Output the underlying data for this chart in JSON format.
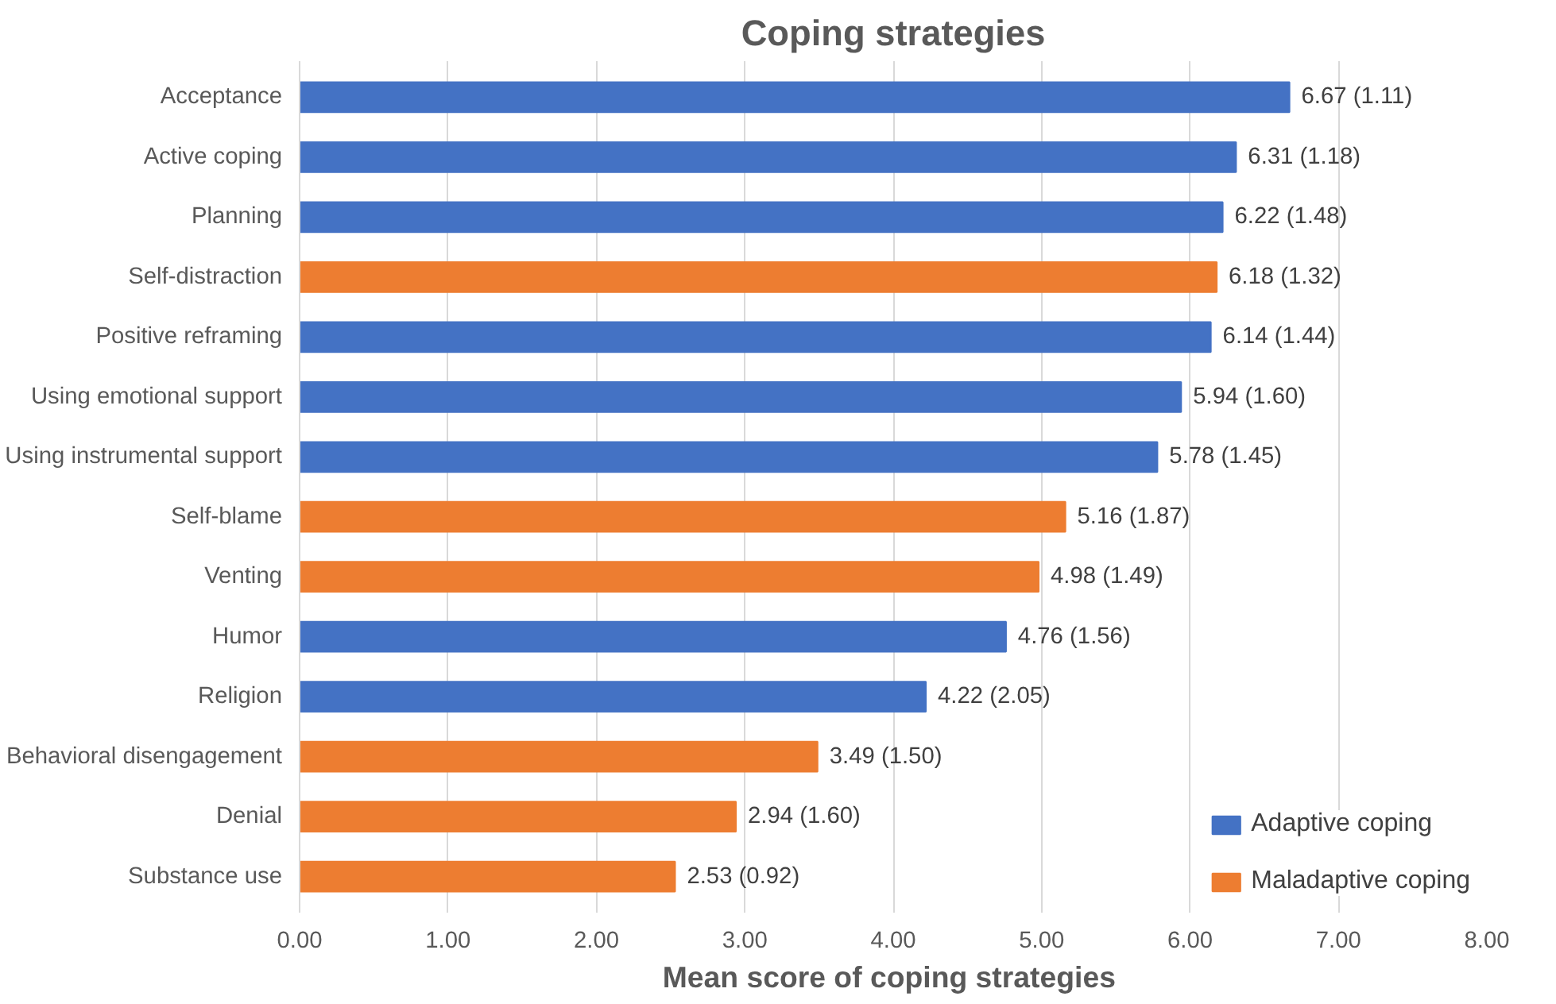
{
  "chart_data": {
    "type": "bar",
    "orientation": "horizontal",
    "title": "Coping strategies",
    "xlabel": "Mean score of  coping strategies",
    "categories": [
      "Acceptance",
      "Active coping",
      "Planning",
      "Self-distraction",
      "Positive reframing",
      "Using emotional support",
      "Using instrumental support",
      "Self-blame",
      "Venting",
      "Humor",
      "Religion",
      "Behavioral disengagement",
      "Denial",
      "Substance use"
    ],
    "series": [
      {
        "name": "Adaptive coping",
        "color": "#4472c4",
        "values": [
          6.67,
          6.31,
          6.22,
          null,
          6.14,
          5.94,
          5.78,
          null,
          null,
          4.76,
          4.22,
          null,
          null,
          null
        ],
        "value_labels": [
          "6.67 (1.11)",
          "6.31 (1.18)",
          "6.22 (1.48)",
          null,
          "6.14 (1.44)",
          "5.94 (1.60)",
          "5.78 (1.45)",
          null,
          null,
          "4.76 (1.56)",
          "4.22 (2.05)",
          null,
          null,
          null
        ]
      },
      {
        "name": "Maladaptive coping",
        "color": "#ed7d31",
        "values": [
          null,
          null,
          null,
          6.18,
          null,
          null,
          null,
          5.16,
          4.98,
          null,
          null,
          3.49,
          2.94,
          2.53
        ],
        "value_labels": [
          null,
          null,
          null,
          "6.18 (1.32)",
          null,
          null,
          null,
          "5.16 (1.87)",
          "4.98 (1.49)",
          null,
          null,
          "3.49 (1.50)",
          "2.94 (1.60)",
          "2.53 (0.92)"
        ]
      }
    ],
    "xlim": [
      0,
      8
    ],
    "xticks": [
      {
        "value": 0,
        "label": "0.00"
      },
      {
        "value": 1,
        "label": "1.00"
      },
      {
        "value": 2,
        "label": "2.00"
      },
      {
        "value": 3,
        "label": "3.00"
      },
      {
        "value": 4,
        "label": "4.00"
      },
      {
        "value": 5,
        "label": "5.00"
      },
      {
        "value": 6,
        "label": "6.00"
      },
      {
        "value": 7,
        "label": "7.00"
      },
      {
        "value": 8,
        "label": "8.00"
      }
    ],
    "grid": "x",
    "legend": "bottom right"
  }
}
